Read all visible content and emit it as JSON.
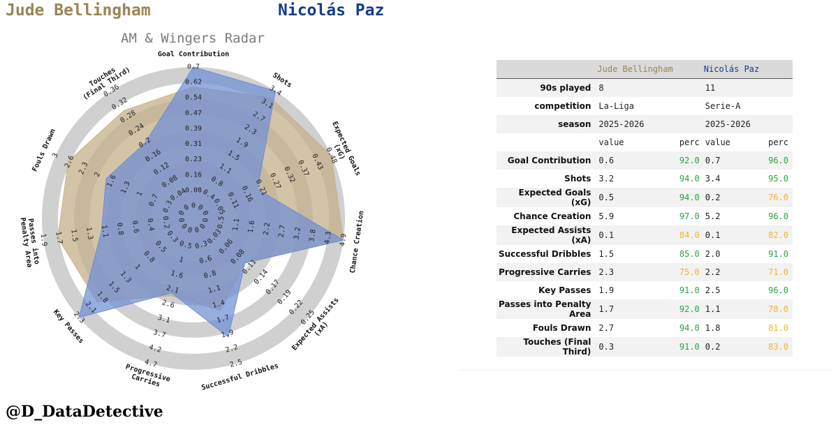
{
  "header": {
    "player1": "Jude Bellingham",
    "player2": "Nicolás Paz"
  },
  "footer": "@D_DataDetective",
  "colors": {
    "player1": "#9b8455",
    "player2": "#153c8c",
    "radar1": "#c6b08a",
    "radar2": "#6f8fd6",
    "perc_high": "#2aa340",
    "perc_mid": "#f0b62e"
  },
  "chart_data": {
    "type": "radar",
    "title": "AM & Wingers Radar",
    "axes": [
      {
        "label": "Goal Contribution",
        "ticks": [
          "0",
          "0.08",
          "0.16",
          "0.23",
          "0.31",
          "0.39",
          "0.47",
          "0.54",
          "0.62",
          "0.7"
        ],
        "max": 0.7
      },
      {
        "label": "Shots",
        "ticks": [
          "0",
          "0.4",
          "0.8",
          "1.1",
          "1.5",
          "1.9",
          "2.3",
          "2.7",
          "3.1",
          "3.4"
        ],
        "max": 3.4
      },
      {
        "label": "Expected Goals (xG)",
        "ticks": [
          "0",
          "0.05",
          "0.11",
          "0.16",
          "0.21",
          "0.27",
          "0.32",
          "0.37",
          "0.43",
          "0.48"
        ],
        "max": 0.48
      },
      {
        "label": "Chance Creation",
        "ticks": [
          "0",
          "0.5",
          "1.1",
          "1.6",
          "2.2",
          "2.7",
          "3.2",
          "3.8",
          "4.3",
          "4.9"
        ],
        "max": 4.9
      },
      {
        "label": "Expected Assists (xA)",
        "ticks": [
          "0",
          "0.03",
          "0.06",
          "0.08",
          "0.11",
          "0.14",
          "0.17",
          "0.19",
          "0.22",
          "0.25"
        ],
        "max": 0.25
      },
      {
        "label": "Successful Dribbles",
        "ticks": [
          "0",
          "0.3",
          "0.6",
          "0.8",
          "1.1",
          "1.4",
          "1.7",
          "1.9",
          "2.2",
          "2.5"
        ],
        "max": 2.5
      },
      {
        "label": "Progressive Carries",
        "ticks": [
          "0",
          "0.5",
          "1",
          "1.6",
          "2.1",
          "2.6",
          "3.1",
          "3.7",
          "4.2",
          "4.7"
        ],
        "max": 4.7
      },
      {
        "label": "Key Passes",
        "ticks": [
          "0",
          "0.3",
          "0.5",
          "0.8",
          "1",
          "1.3",
          "1.5",
          "1.8",
          "2.1",
          "2.3"
        ],
        "max": 2.3
      },
      {
        "label": "Passes into Penalty Area",
        "ticks": [
          "0",
          "0.2",
          "0.4",
          "0.6",
          "0.8",
          "1.1",
          "1.3",
          "1.5",
          "1.7",
          "1.9"
        ],
        "max": 1.9
      },
      {
        "label": "Fouls Drawn",
        "ticks": [
          "0",
          "0.3",
          "0.7",
          "1",
          "1.3",
          "1.6",
          "2",
          "2.3",
          "2.6",
          "3"
        ],
        "max": 3.0
      },
      {
        "label": "Touches (Final Third)",
        "ticks": [
          "0",
          "0.04",
          "0.08",
          "0.12",
          "0.16",
          "0.2",
          "0.24",
          "0.28",
          "0.32",
          "0.36"
        ],
        "max": 0.36
      }
    ],
    "series": [
      {
        "name": "Jude Bellingham",
        "values": [
          0.6,
          3.2,
          0.5,
          5.9,
          0.1,
          1.5,
          2.3,
          1.9,
          1.7,
          2.7,
          0.3
        ]
      },
      {
        "name": "Nicolás Paz",
        "values": [
          0.7,
          3.4,
          0.2,
          5.2,
          0.1,
          2.0,
          2.2,
          2.5,
          1.1,
          1.8,
          0.2
        ]
      }
    ]
  },
  "table": {
    "info_rows": [
      {
        "label": "90s played",
        "p1": "8",
        "p2": "11"
      },
      {
        "label": "competition",
        "p1": "La-Liga",
        "p2": "Serie-A"
      },
      {
        "label": "season",
        "p1": "2025-2026",
        "p2": "2025-2026"
      }
    ],
    "subheader": {
      "value": "value",
      "perc": "perc"
    },
    "stat_rows": [
      {
        "label": "Goal Contribution",
        "v1": "0.6",
        "p1": "92.0",
        "v2": "0.7",
        "p2": "96.0"
      },
      {
        "label": "Shots",
        "v1": "3.2",
        "p1": "94.0",
        "v2": "3.4",
        "p2": "95.0"
      },
      {
        "label": "Expected Goals (xG)",
        "v1": "0.5",
        "p1": "94.0",
        "v2": "0.2",
        "p2": "76.0"
      },
      {
        "label": "Chance Creation",
        "v1": "5.9",
        "p1": "97.0",
        "v2": "5.2",
        "p2": "96.0"
      },
      {
        "label": "Expected Assists (xA)",
        "v1": "0.1",
        "p1": "84.0",
        "v2": "0.1",
        "p2": "82.0"
      },
      {
        "label": "Successful Dribbles",
        "v1": "1.5",
        "p1": "85.0",
        "v2": "2.0",
        "p2": "91.0"
      },
      {
        "label": "Progressive Carries",
        "v1": "2.3",
        "p1": "75.0",
        "v2": "2.2",
        "p2": "71.0"
      },
      {
        "label": "Key Passes",
        "v1": "1.9",
        "p1": "91.0",
        "v2": "2.5",
        "p2": "96.0"
      },
      {
        "label": "Passes into Penalty Area",
        "v1": "1.7",
        "p1": "92.0",
        "v2": "1.1",
        "p2": "78.0"
      },
      {
        "label": "Fouls Drawn",
        "v1": "2.7",
        "p1": "94.0",
        "v2": "1.8",
        "p2": "81.0"
      },
      {
        "label": "Touches (Final Third)",
        "v1": "0.3",
        "p1": "91.0",
        "v2": "0.2",
        "p2": "83.0"
      }
    ]
  }
}
